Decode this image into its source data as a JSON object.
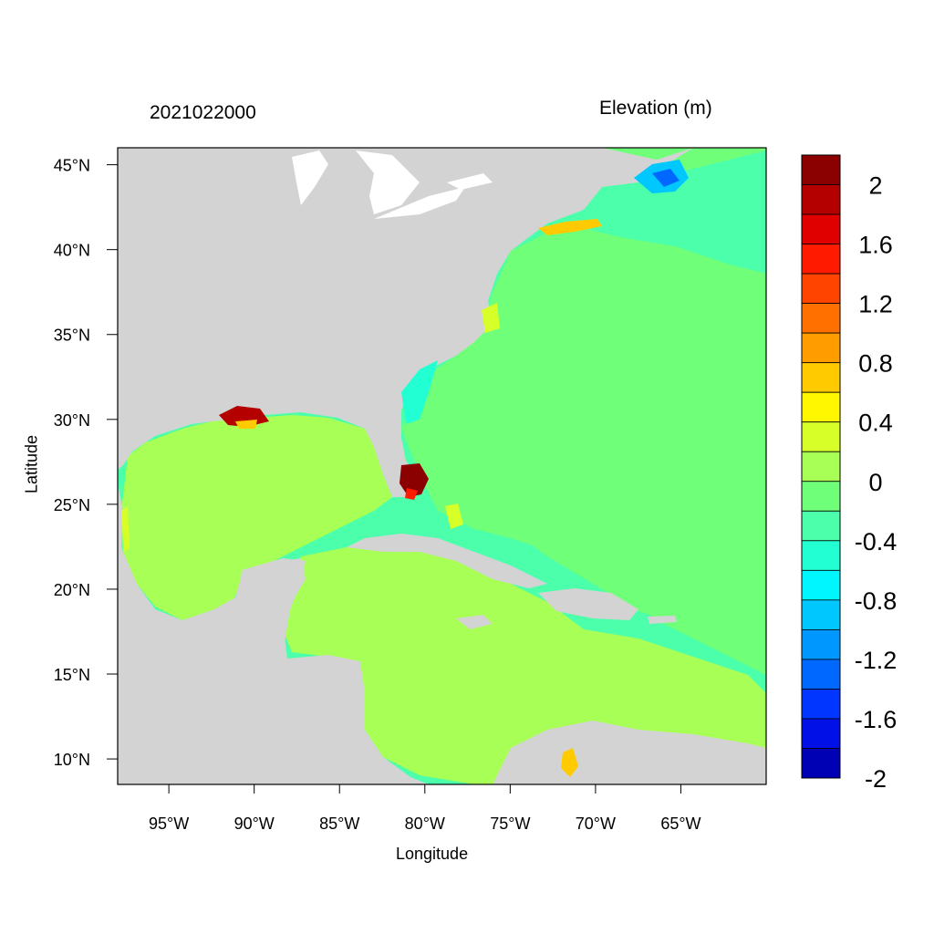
{
  "title_left": "2021022000",
  "title_right": "Elevation (m)",
  "xlabel": "Longitude",
  "ylabel": "Latitude",
  "map": {
    "lon_range": [
      -98,
      -60
    ],
    "lat_range": [
      8.5,
      46
    ],
    "x_ticks": [
      "95°W",
      "90°W",
      "85°W",
      "80°W",
      "75°W",
      "70°W",
      "65°W"
    ],
    "x_tick_values": [
      -95,
      -90,
      -85,
      -80,
      -75,
      -70,
      -65
    ],
    "y_ticks": [
      "45°N",
      "40°N",
      "35°N",
      "30°N",
      "25°N",
      "20°N",
      "15°N",
      "10°N"
    ],
    "y_tick_values": [
      45,
      40,
      35,
      30,
      25,
      20,
      15,
      10
    ],
    "land_color": "#d3d3d3",
    "lake_color": "#ffffff",
    "ocean_color_atlantic": "#6fff79",
    "ocean_color_gulf": "#a8ff55",
    "shelf_color": "#4cffaa"
  },
  "colorbar": {
    "colors": [
      "#8b0000",
      "#b50000",
      "#e00000",
      "#ff1a00",
      "#ff4400",
      "#ff7000",
      "#ff9d00",
      "#ffca00",
      "#fff700",
      "#d7ff28",
      "#a8ff55",
      "#6fff79",
      "#4cffaa",
      "#22ffd2",
      "#00f6ff",
      "#00c8ff",
      "#0097ff",
      "#0068ff",
      "#0036ff",
      "#0010e6",
      "#0000b4"
    ],
    "labels": [
      "2",
      "1.6",
      "1.2",
      "0.8",
      "0.4",
      "0",
      "-0.4",
      "-0.8",
      "-1.2",
      "-1.6",
      "-2"
    ]
  }
}
